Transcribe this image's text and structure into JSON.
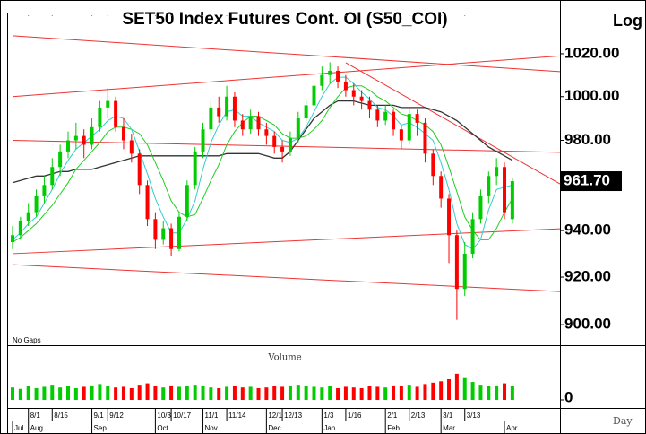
{
  "chart_data": {
    "type": "candlestick",
    "title": "SET50 Index Futures Cont. OI (S50_COI)",
    "scale_label": "Log",
    "log_scale": true,
    "gaps_label": "No Gaps",
    "x_unit_label": "Day",
    "up_color": "#00cc00",
    "down_color": "#ff0000",
    "xlim": [
      0,
      69
    ],
    "ylim": [
      891.5,
      1039.6
    ],
    "yticks": [
      {
        "value": 900,
        "label": "900.00"
      },
      {
        "value": 920,
        "label": "920.00"
      },
      {
        "value": 940,
        "label": "940.00"
      },
      {
        "value": 980,
        "label": "980.00"
      },
      {
        "value": 1000,
        "label": "1000.00"
      },
      {
        "value": 1020,
        "label": "1020.00"
      }
    ],
    "last_price_label": "961.70",
    "categories": [
      null,
      null,
      "8/1",
      null,
      null,
      "8/15",
      null,
      null,
      null,
      null,
      "9/1",
      null,
      "9/12",
      null,
      null,
      null,
      null,
      null,
      "10/3",
      null,
      "10/17",
      null,
      null,
      null,
      "11/1",
      null,
      null,
      "11/14",
      null,
      null,
      null,
      null,
      "12/1",
      null,
      "12/13",
      null,
      null,
      null,
      null,
      "1/3",
      null,
      null,
      "1/16",
      null,
      null,
      null,
      null,
      "2/1",
      null,
      null,
      "2/13",
      null,
      null,
      null,
      "3/1",
      null,
      null,
      "3/13",
      null,
      null,
      null,
      null,
      null,
      null
    ],
    "months": [
      "Jul",
      null,
      "Aug",
      null,
      null,
      null,
      null,
      null,
      null,
      null,
      "Sep",
      null,
      null,
      null,
      null,
      null,
      null,
      null,
      "Oct",
      null,
      null,
      null,
      null,
      null,
      "Nov",
      null,
      null,
      null,
      null,
      null,
      null,
      null,
      "Dec",
      null,
      null,
      null,
      null,
      null,
      null,
      "Jan",
      null,
      null,
      null,
      null,
      null,
      null,
      null,
      "Feb",
      null,
      null,
      null,
      null,
      null,
      null,
      "Mar",
      null,
      null,
      null,
      null,
      null,
      null,
      null,
      "Apr",
      null
    ],
    "candles": [
      [
        935,
        942,
        932,
        938
      ],
      [
        938,
        946,
        936,
        944
      ],
      [
        944,
        952,
        942,
        948
      ],
      [
        948,
        958,
        946,
        955
      ],
      [
        955,
        964,
        952,
        960
      ],
      [
        960,
        972,
        958,
        968
      ],
      [
        968,
        978,
        964,
        975
      ],
      [
        975,
        984,
        972,
        980
      ],
      [
        980,
        988,
        976,
        982
      ],
      [
        982,
        985,
        972,
        978
      ],
      [
        978,
        990,
        976,
        986
      ],
      [
        986,
        998,
        984,
        995
      ],
      [
        995,
        1004,
        990,
        998
      ],
      [
        998,
        1000,
        984,
        986
      ],
      [
        986,
        990,
        976,
        980
      ],
      [
        980,
        983,
        970,
        974
      ],
      [
        974,
        976,
        956,
        960
      ],
      [
        960,
        962,
        942,
        945
      ],
      [
        945,
        948,
        932,
        936
      ],
      [
        936,
        944,
        934,
        941
      ],
      [
        941,
        943,
        929,
        932
      ],
      [
        932,
        948,
        931,
        946
      ],
      [
        946,
        962,
        944,
        960
      ],
      [
        960,
        977,
        958,
        975
      ],
      [
        975,
        988,
        972,
        985
      ],
      [
        985,
        998,
        982,
        995
      ],
      [
        995,
        1000,
        988,
        991
      ],
      [
        991,
        1005,
        989,
        1000
      ],
      [
        1000,
        1002,
        986,
        989
      ],
      [
        989,
        992,
        982,
        985
      ],
      [
        985,
        994,
        983,
        991
      ],
      [
        991,
        993,
        982,
        985
      ],
      [
        985,
        988,
        978,
        982
      ],
      [
        982,
        984,
        974,
        977
      ],
      [
        977,
        980,
        970,
        975
      ],
      [
        975,
        984,
        973,
        981
      ],
      [
        981,
        993,
        979,
        990
      ],
      [
        990,
        999,
        988,
        996
      ],
      [
        996,
        1008,
        994,
        1005
      ],
      [
        1005,
        1014,
        1003,
        1010
      ],
      [
        1010,
        1016,
        1006,
        1012
      ],
      [
        1012,
        1014,
        1004,
        1007
      ],
      [
        1007,
        1010,
        1000,
        1003
      ],
      [
        1003,
        1006,
        996,
        1000
      ],
      [
        1000,
        1003,
        994,
        998
      ],
      [
        998,
        1000,
        990,
        994
      ],
      [
        994,
        996,
        986,
        989
      ],
      [
        989,
        996,
        987,
        993
      ],
      [
        993,
        994,
        982,
        985
      ],
      [
        985,
        987,
        976,
        980
      ],
      [
        980,
        995,
        978,
        992
      ],
      [
        992,
        994,
        982,
        988
      ],
      [
        988,
        990,
        970,
        974
      ],
      [
        974,
        976,
        960,
        964
      ],
      [
        964,
        966,
        950,
        954
      ],
      [
        954,
        956,
        926,
        938
      ],
      [
        938,
        940,
        902,
        915
      ],
      [
        915,
        935,
        912,
        930
      ],
      [
        930,
        948,
        928,
        945
      ],
      [
        945,
        958,
        943,
        955
      ],
      [
        955,
        966,
        952,
        964
      ],
      [
        964,
        972,
        960,
        968
      ],
      [
        968,
        970,
        945,
        948
      ],
      [
        945,
        963,
        943,
        961.7
      ]
    ],
    "series": [
      {
        "color": "#333333",
        "values": [
          961,
          962,
          963,
          964,
          964,
          965,
          966,
          966,
          967,
          967,
          967,
          968,
          969,
          970,
          971,
          972,
          973,
          973,
          973,
          973,
          973,
          973,
          973,
          973,
          973,
          973,
          973,
          974,
          974,
          974,
          974,
          974,
          973,
          972,
          972,
          975,
          980,
          985,
          990,
          993,
          996,
          998,
          998,
          998,
          997,
          996,
          996,
          996,
          996,
          995,
          995,
          995,
          995,
          994,
          993,
          991,
          989,
          986,
          983,
          980,
          977,
          975,
          973,
          971
        ]
      },
      {
        "color": "#22cc22",
        "values": [
          935,
          937,
          940,
          943,
          947,
          951,
          956,
          961,
          967,
          971,
          975,
          979,
          984,
          986,
          986,
          985,
          983,
          978,
          970,
          962,
          953,
          948,
          946,
          947,
          954,
          962,
          969,
          978,
          984,
          988,
          991,
          991,
          989,
          987,
          983,
          981,
          981,
          982,
          985,
          989,
          995,
          1000,
          1004,
          1005,
          1005,
          1003,
          1000,
          998,
          995,
          992,
          991,
          989,
          987,
          984,
          978,
          968,
          957,
          946,
          940,
          936,
          936,
          941,
          948,
          954
        ]
      },
      {
        "color": "#33cccc",
        "values": [
          936,
          939,
          943,
          946,
          952,
          958,
          965,
          971,
          976,
          979,
          982,
          985,
          989,
          991,
          990,
          985,
          975,
          965,
          954,
          946,
          939,
          939,
          945,
          953,
          967,
          979,
          987,
          993,
          994,
          991,
          991,
          988,
          986,
          984,
          980,
          979,
          981,
          986,
          993,
          1000,
          1006,
          1009,
          1009,
          1006,
          1002,
          999,
          995,
          994,
          991,
          987,
          988,
          986,
          983,
          980,
          970,
          958,
          943,
          934,
          932,
          936,
          949,
          958,
          959,
          960
        ]
      }
    ],
    "trend_lines": [
      {
        "color": "#ee3333",
        "x": [
          0,
          69
        ],
        "y": [
          1028.5,
          1011.6
        ]
      },
      {
        "color": "#ee3333",
        "x": [
          0,
          69
        ],
        "y": [
          1000,
          1019
        ]
      },
      {
        "color": "#ee3333",
        "x": [
          0,
          69
        ],
        "y": [
          980,
          974.6
        ]
      },
      {
        "color": "#ee3333",
        "x": [
          0,
          69
        ],
        "y": [
          930,
          940.8
        ]
      },
      {
        "color": "#ee3333",
        "x": [
          0,
          69
        ],
        "y": [
          925.3,
          913.9
        ]
      },
      {
        "color": "#ee3333",
        "x": [
          42,
          69
        ],
        "y": [
          1015.8,
          960.5
        ]
      }
    ],
    "volume": {
      "title": "Volume",
      "ylim": [
        0,
        60
      ],
      "yticks": [
        0
      ],
      "values": [
        18,
        16,
        20,
        17,
        19,
        22,
        18,
        20,
        17,
        19,
        21,
        23,
        20,
        18,
        19,
        17,
        22,
        24,
        20,
        18,
        21,
        19,
        20,
        22,
        21,
        18,
        17,
        19,
        20,
        18,
        19,
        17,
        18,
        20,
        19,
        21,
        22,
        20,
        19,
        18,
        20,
        17,
        19,
        18,
        17,
        20,
        19,
        18,
        21,
        20,
        22,
        19,
        23,
        25,
        27,
        30,
        38,
        33,
        26,
        22,
        20,
        21,
        24,
        20
      ]
    }
  }
}
